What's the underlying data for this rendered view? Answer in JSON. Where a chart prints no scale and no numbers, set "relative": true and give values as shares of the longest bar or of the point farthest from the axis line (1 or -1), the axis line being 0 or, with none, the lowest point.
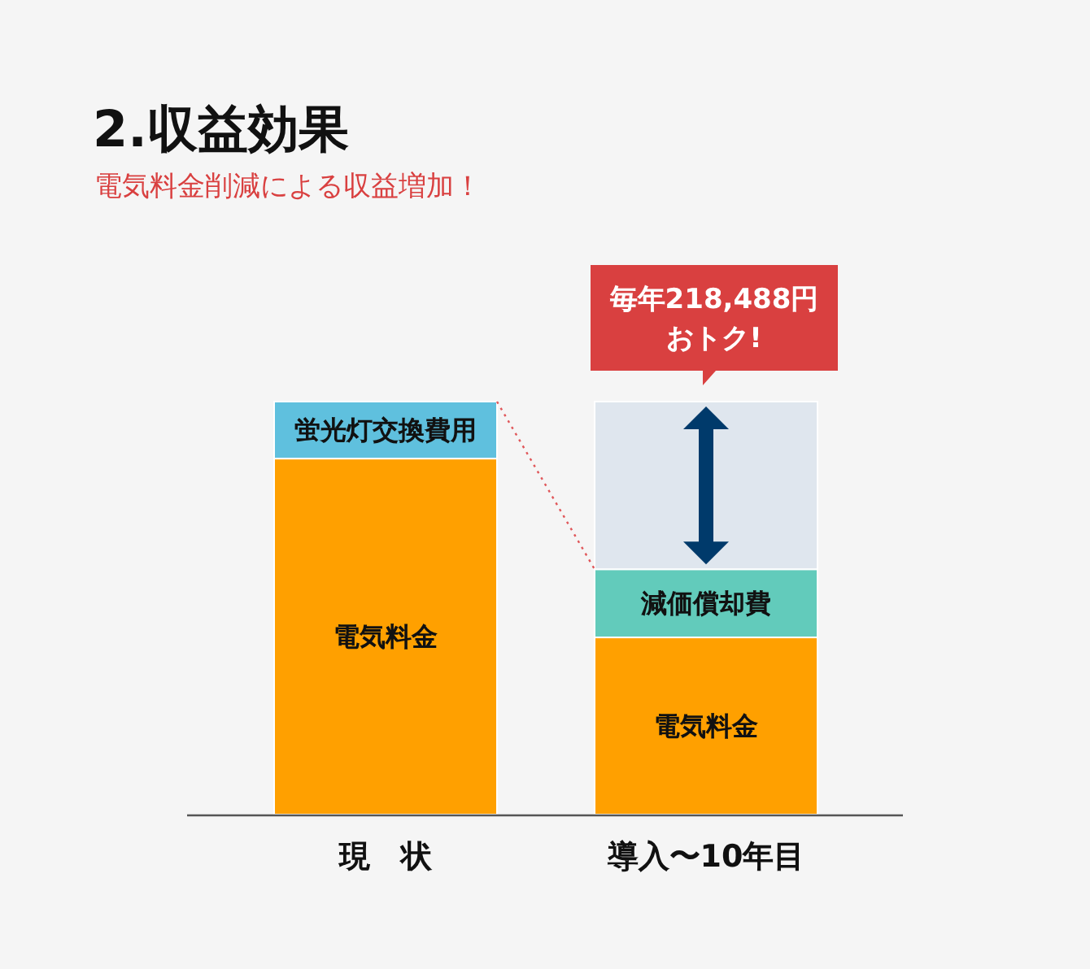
{
  "chart_data": {
    "type": "bar",
    "title": "2.収益効果",
    "subtitle": "電気料金削減による収益増加！",
    "categories": [
      "現　状",
      "導入〜10年目"
    ],
    "stacked": true,
    "relative": true,
    "series": [
      {
        "name": "電気料金",
        "color": "#ffa000",
        "values": [
          0.862,
          0.429
        ]
      },
      {
        "name": "蛍光灯交換費用",
        "color": "#5fc0de",
        "values": [
          0.138,
          null
        ]
      },
      {
        "name": "減価償却費",
        "color": "#62cbbb",
        "values": [
          null,
          0.165
        ]
      },
      {
        "color": "#dfe6ee",
        "values": [
          null,
          0.406
        ]
      }
    ],
    "annotations": [
      {
        "text": "毎年218,488円おトク!",
        "x": "導入〜10年目",
        "y": 1
      }
    ]
  }
}
